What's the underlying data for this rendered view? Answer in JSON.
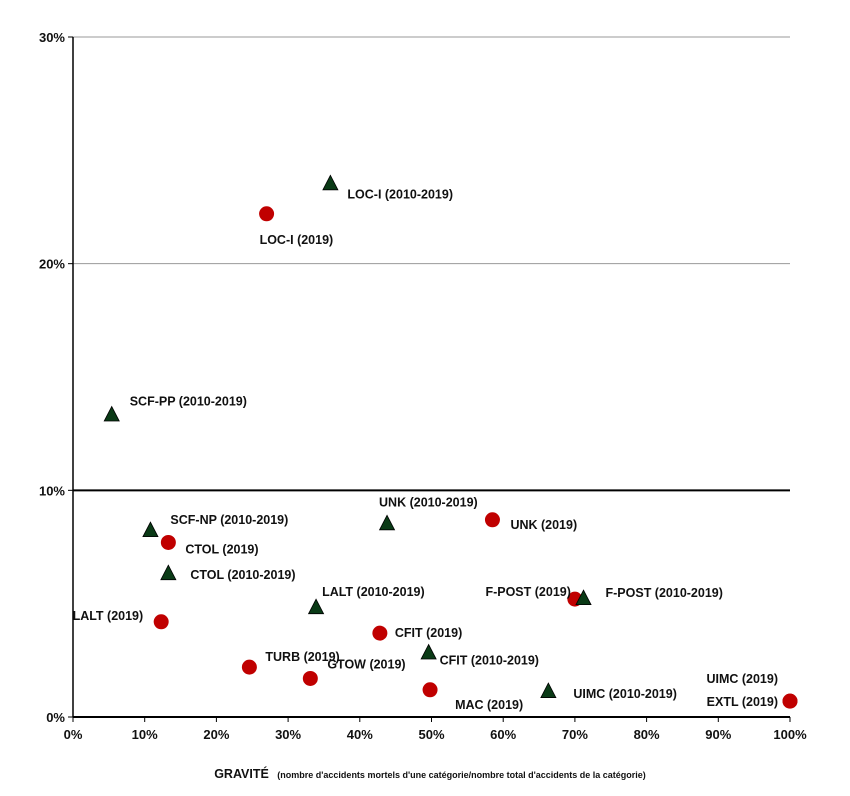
{
  "chart_data": {
    "type": "scatter",
    "title": "",
    "xlabel": "GRAVITÉ",
    "xlabel_note": "(nombre d'accidents mortels d'une catégorie/nombre total d'accidents de la catégorie)",
    "ylabel": "",
    "xlim": [
      0,
      100
    ],
    "ylim": [
      0,
      30
    ],
    "x_ticks": [
      "0%",
      "10%",
      "20%",
      "30%",
      "40%",
      "50%",
      "60%",
      "70%",
      "80%",
      "90%",
      "100%"
    ],
    "y_ticks": [
      {
        "value": 0,
        "label": "0%"
      },
      {
        "value": 10,
        "label": "10%"
      },
      {
        "value": 20,
        "label": "20%"
      },
      {
        "value": 30,
        "label": "30%"
      }
    ],
    "grid": "horizontal at 20% and 30%; heavy reference line at 10%",
    "reference_line_y": 10,
    "colors": {
      "period_2019": "#c00000",
      "period_2010_2019": "#0a3a16",
      "marker_outline": "#000000"
    },
    "series": [
      {
        "marker": "circle-red",
        "points": [
          {
            "label": "LOC-I (2019)",
            "x": 27,
            "y": 22.2
          },
          {
            "label": "UNK (2019)",
            "x": 58.5,
            "y": 8.7
          },
          {
            "label": "CTOL (2019)",
            "x": 13.3,
            "y": 7.7
          },
          {
            "label": "LALT (2019)",
            "x": 12.3,
            "y": 4.2
          },
          {
            "label": "F-POST (2019)",
            "x": 70,
            "y": 5.2
          },
          {
            "label": "CFIT (2019)",
            "x": 42.8,
            "y": 3.7
          },
          {
            "label": "TURB (2019)",
            "x": 24.6,
            "y": 2.2
          },
          {
            "label": "GTOW (2019)",
            "x": 33.1,
            "y": 1.7
          },
          {
            "label": "MAC (2019)",
            "x": 49.8,
            "y": 1.2
          },
          {
            "label": "UIMC (2019)",
            "x": 100,
            "y": 0.7
          },
          {
            "label": "EXTL (2019)",
            "x": 100,
            "y": 0.7
          }
        ]
      },
      {
        "marker": "triangle-green",
        "points": [
          {
            "label": "LOC-I (2010-2019)",
            "x": 35.9,
            "y": 23.5
          },
          {
            "label": "SCF-PP (2010-2019)",
            "x": 5.4,
            "y": 13.3
          },
          {
            "label": "SCF-NP (2010-2019)",
            "x": 10.8,
            "y": 8.2
          },
          {
            "label": "CTOL (2010-2019)",
            "x": 13.3,
            "y": 6.3
          },
          {
            "label": "UNK (2010-2019)",
            "x": 43.8,
            "y": 8.5
          },
          {
            "label": "LALT (2010-2019)",
            "x": 33.9,
            "y": 4.8
          },
          {
            "label": "F-POST (2010-2019)",
            "x": 71.2,
            "y": 5.2
          },
          {
            "label": "CFIT (2010-2019)",
            "x": 49.6,
            "y": 2.8
          },
          {
            "label": "UIMC (2010-2019)",
            "x": 66.3,
            "y": 1.1
          }
        ]
      }
    ]
  }
}
